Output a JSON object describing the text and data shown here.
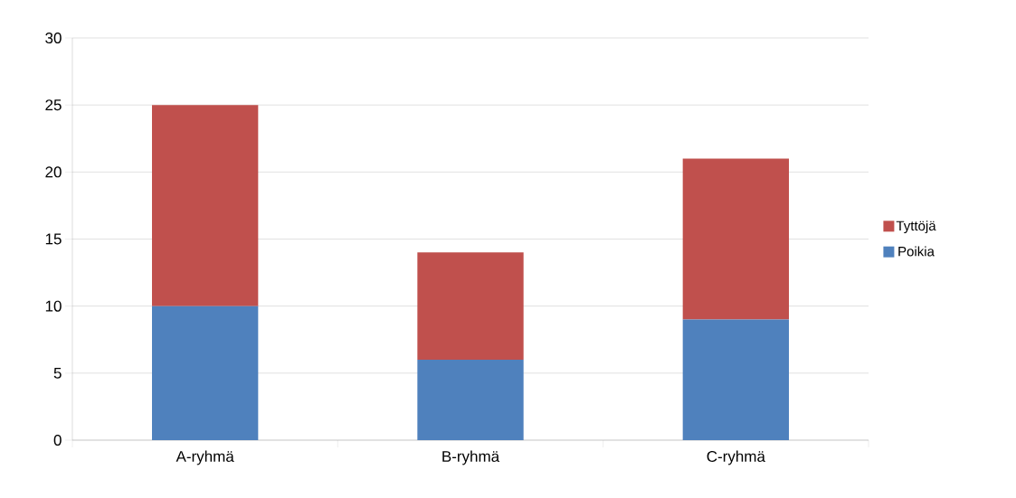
{
  "chart_data": {
    "type": "bar",
    "stacked": true,
    "categories": [
      "A-ryhmä",
      "B-ryhmä",
      "C-ryhmä"
    ],
    "series": [
      {
        "name": "Poikia",
        "color": "#4f81bd",
        "values": [
          10,
          6,
          9
        ]
      },
      {
        "name": "Tyttöjä",
        "color": "#c0504d",
        "values": [
          15,
          8,
          12
        ]
      }
    ],
    "ylim": [
      0,
      30
    ],
    "yticks": [
      0,
      5,
      10,
      15,
      20,
      25,
      30
    ],
    "grid": "y",
    "legend": "right"
  }
}
